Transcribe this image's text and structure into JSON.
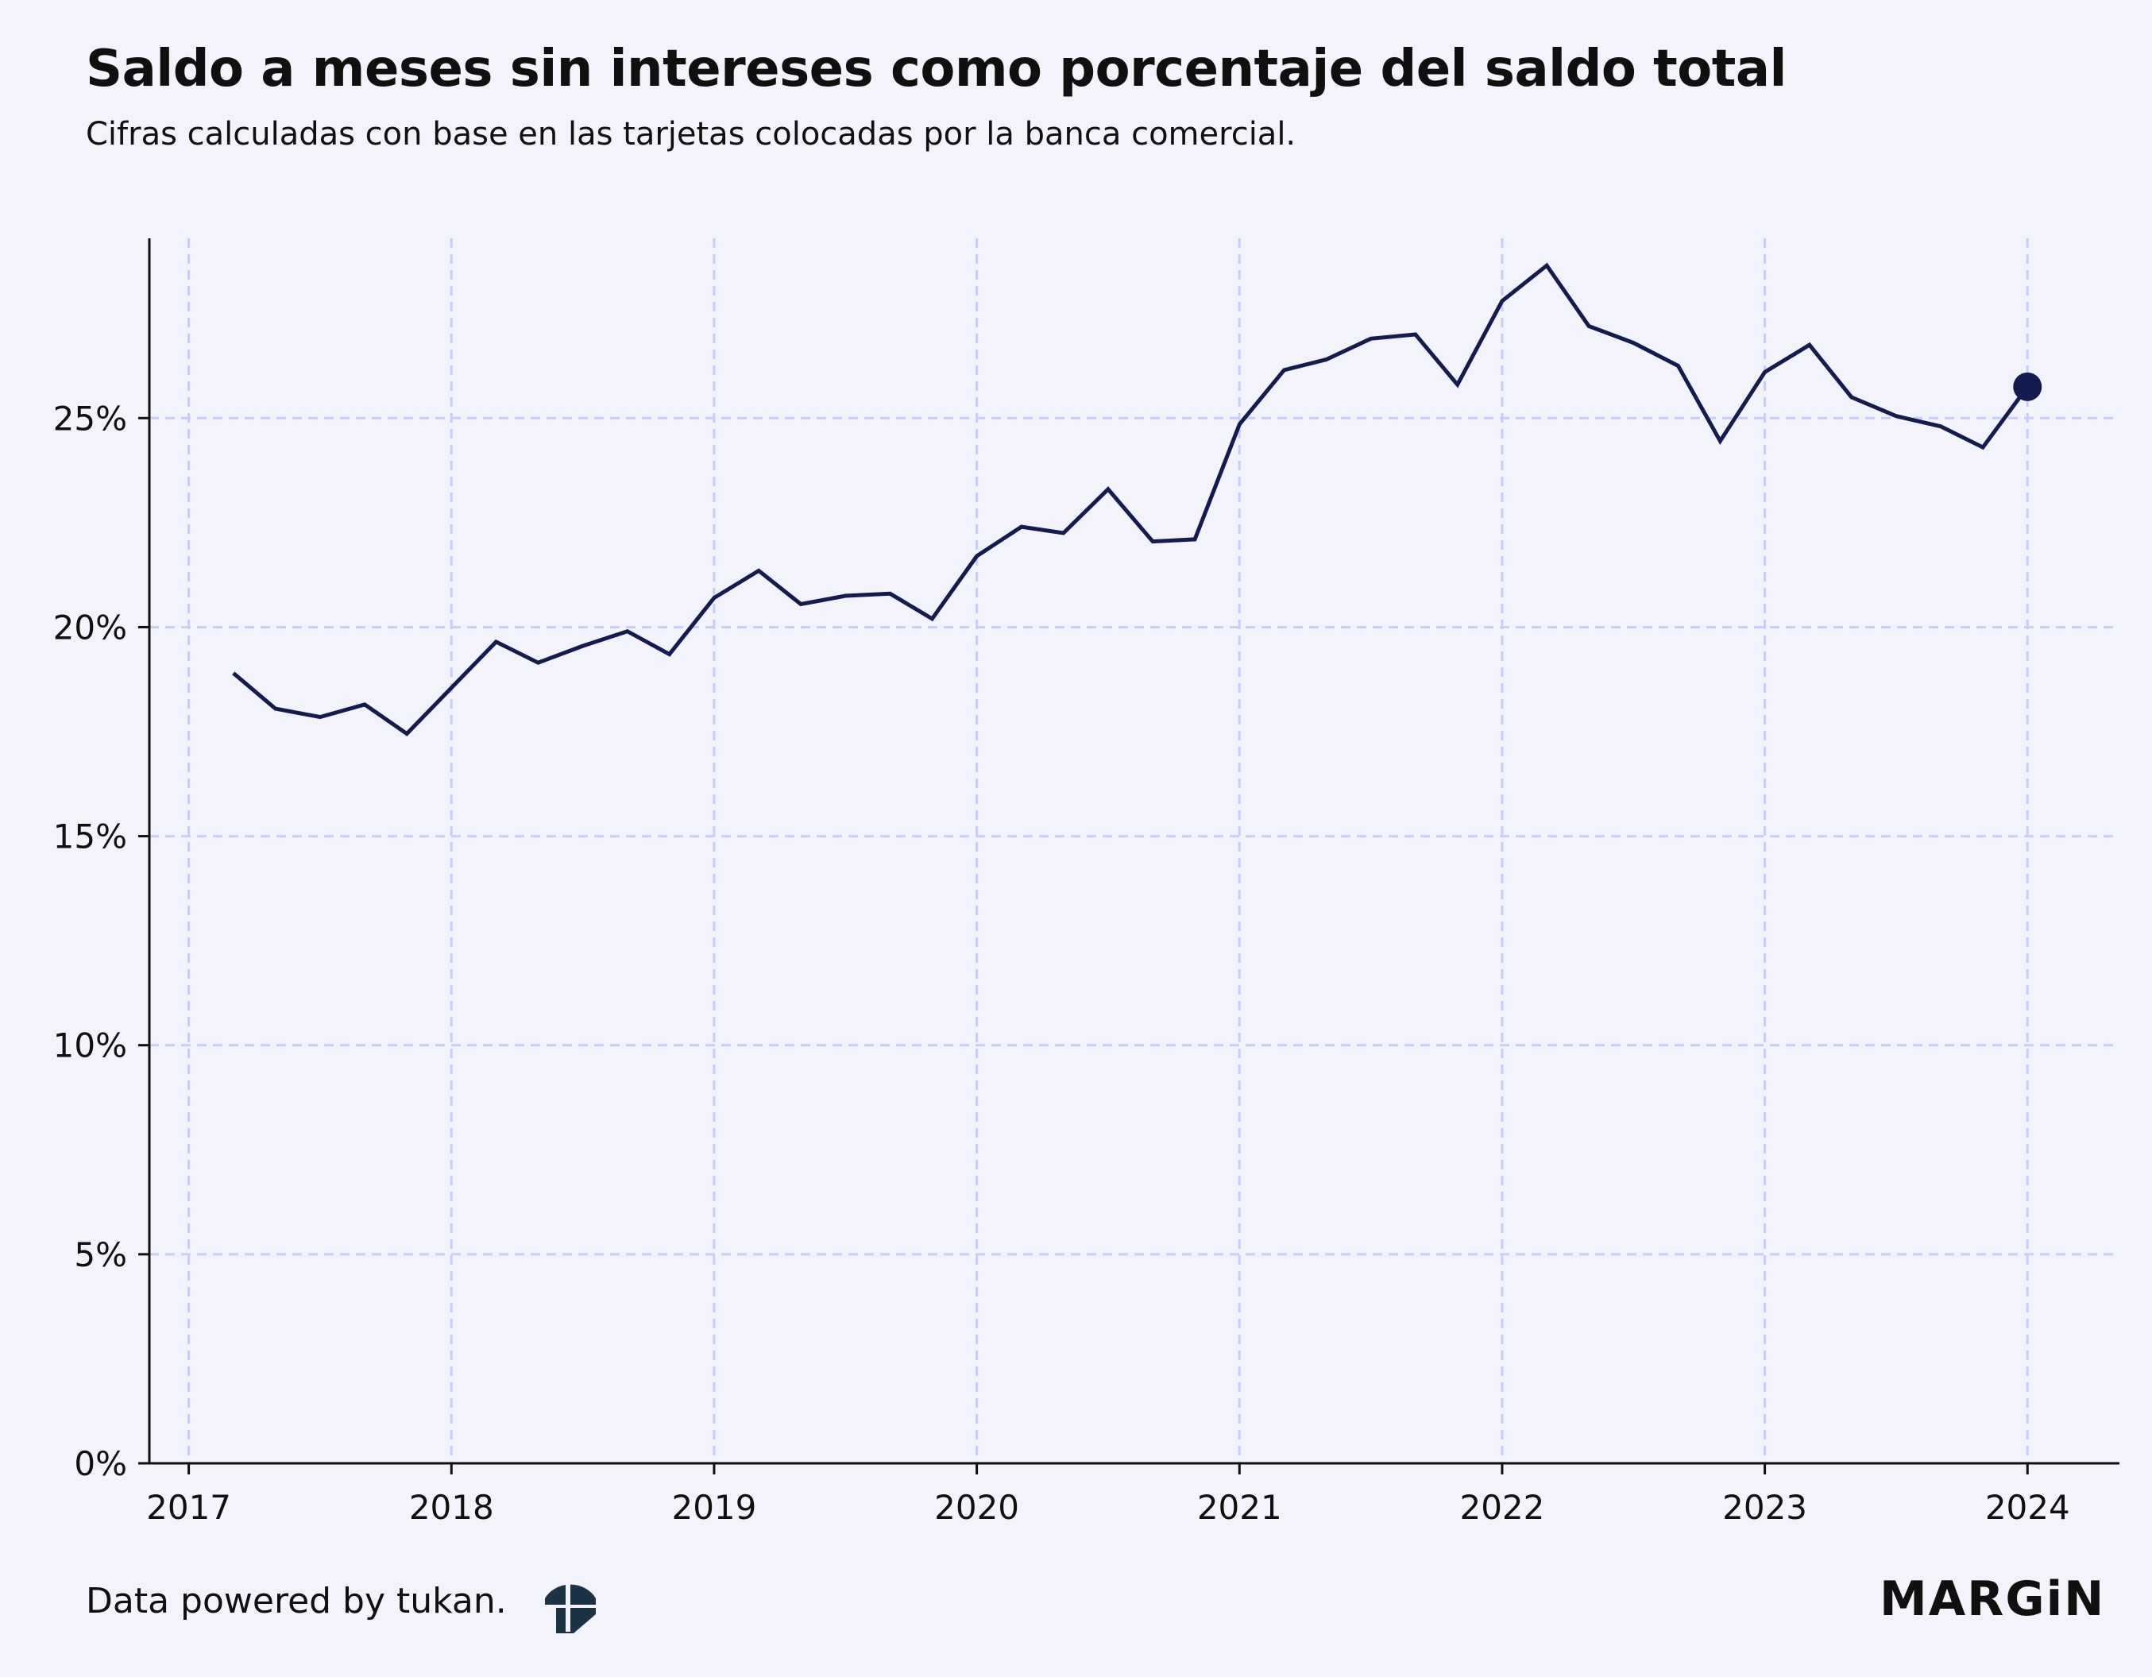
{
  "title": "Saldo a meses sin intereses como porcentaje del saldo total",
  "subtitle": "Cifras calculadas con base en las tarjetas colocadas por la banca comercial.",
  "footer": {
    "credit": "Data powered by tukan.",
    "brand": "MARGiN"
  },
  "colors": {
    "background": "#f3f3fc",
    "line": "#141c4f",
    "grid": "#c9cdf7",
    "axis": "#101010"
  },
  "chart_data": {
    "type": "line",
    "title": "Saldo a meses sin intereses como porcentaje del saldo total",
    "xlabel": "",
    "ylabel": "",
    "xlim": [
      2016.85,
      2024.35
    ],
    "ylim": [
      0,
      29.3
    ],
    "xticks": [
      2017,
      2018,
      2019,
      2020,
      2021,
      2022,
      2023,
      2024
    ],
    "xtick_labels": [
      "2017",
      "2018",
      "2019",
      "2020",
      "2021",
      "2022",
      "2023",
      "2024"
    ],
    "yticks": [
      0,
      5,
      10,
      15,
      20,
      25
    ],
    "ytick_labels": [
      "0%",
      "5%",
      "10%",
      "15%",
      "20%",
      "25%"
    ],
    "grid": true,
    "legend": "none",
    "series": [
      {
        "x": [
          2017.17,
          2017.33,
          2017.5,
          2017.67,
          2017.83,
          2018.0,
          2018.17,
          2018.33,
          2018.5,
          2018.67,
          2018.83,
          2019.0,
          2019.17,
          2019.33,
          2019.5,
          2019.67,
          2019.83,
          2020.0,
          2020.17,
          2020.33,
          2020.5,
          2020.67,
          2020.83,
          2021.0,
          2021.17,
          2021.33,
          2021.5,
          2021.67,
          2021.83,
          2022.0,
          2022.17,
          2022.33,
          2022.5,
          2022.67,
          2022.83,
          2023.0,
          2023.17,
          2023.33,
          2023.5,
          2023.67,
          2023.83,
          2024.0
        ],
        "values": [
          18.9,
          18.05,
          17.85,
          18.15,
          17.45,
          18.55,
          19.65,
          19.15,
          19.55,
          19.9,
          19.35,
          20.7,
          21.35,
          20.55,
          20.75,
          20.8,
          20.2,
          21.7,
          22.4,
          22.25,
          23.3,
          22.05,
          22.1,
          24.85,
          26.15,
          26.4,
          26.9,
          27.0,
          25.8,
          27.8,
          28.65,
          27.2,
          26.8,
          26.25,
          24.45,
          26.1,
          26.75,
          25.5,
          25.05,
          24.8,
          24.3,
          25.75
        ]
      }
    ],
    "end_marker": true
  }
}
